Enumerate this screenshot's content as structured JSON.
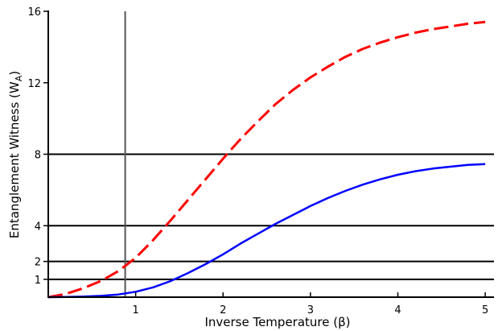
{
  "chart_data": {
    "type": "line",
    "xlabel": "Inverse Temperature (β)",
    "ylabel": "Entanglement Witness (W",
    "ylabel_sub": "A",
    "ylabel_close": ")",
    "xlim": [
      0,
      5.1
    ],
    "ylim": [
      0,
      16
    ],
    "x_ticks": [
      1,
      2,
      3,
      4,
      5
    ],
    "y_ticks": [
      1,
      2,
      4,
      8,
      12,
      16
    ],
    "horizontal_lines": [
      1,
      2,
      4,
      8
    ],
    "vertical_line": 0.88,
    "series": [
      {
        "color": "#ff0000",
        "style": "dashed",
        "x": [
          0,
          0.2,
          0.4,
          0.6,
          0.8,
          1.0,
          1.2,
          1.4,
          1.6,
          1.8,
          2.0,
          2.2,
          2.4,
          2.6,
          2.8,
          3.0,
          3.2,
          3.4,
          3.6,
          3.8,
          4.0,
          4.2,
          4.4,
          4.6,
          4.8,
          5.0
        ],
        "values": [
          0,
          0.18,
          0.5,
          0.9,
          1.45,
          2.2,
          3.2,
          4.3,
          5.45,
          6.6,
          7.75,
          8.85,
          9.85,
          10.8,
          11.6,
          12.3,
          12.9,
          13.45,
          13.9,
          14.25,
          14.55,
          14.8,
          15.0,
          15.15,
          15.3,
          15.4
        ]
      },
      {
        "color": "#0000ff",
        "style": "solid",
        "x": [
          0,
          0.2,
          0.4,
          0.6,
          0.8,
          1.0,
          1.2,
          1.4,
          1.6,
          1.8,
          2.0,
          2.2,
          2.4,
          2.6,
          2.8,
          3.0,
          3.2,
          3.4,
          3.6,
          3.8,
          4.0,
          4.2,
          4.4,
          4.6,
          4.8,
          5.0
        ],
        "values": [
          0,
          0.01,
          0.03,
          0.07,
          0.15,
          0.3,
          0.55,
          0.9,
          1.35,
          1.85,
          2.4,
          3.0,
          3.55,
          4.1,
          4.6,
          5.1,
          5.55,
          5.95,
          6.3,
          6.6,
          6.85,
          7.05,
          7.2,
          7.3,
          7.4,
          7.45
        ]
      }
    ]
  }
}
